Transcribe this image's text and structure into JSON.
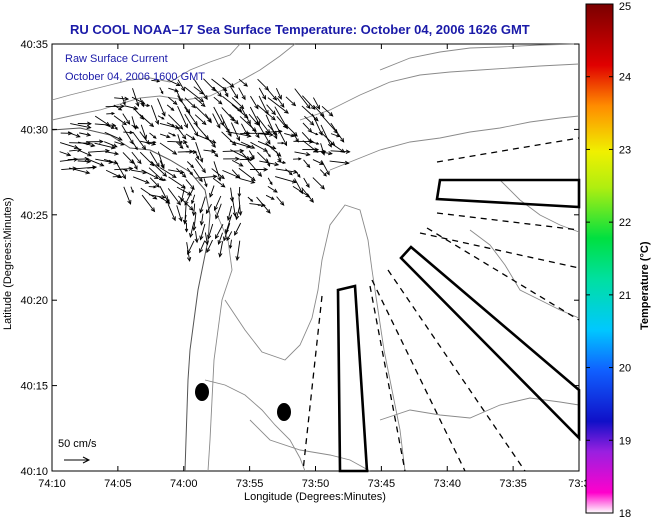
{
  "title": "RU COOL  NOAA–17  Sea Surface Temperature:  October 04, 2006 1626 GMT",
  "inset": {
    "line1": "Raw Surface Current",
    "line2": "October 04, 2006 1600 GMT"
  },
  "axes": {
    "xlabel": "Longitude (Degrees:Minutes)",
    "ylabel": "Latitude (Degrees:Minutes)",
    "x_ticks": [
      "74:10",
      "74:05",
      "74:00",
      "73:55",
      "73:50",
      "73:45",
      "73:40",
      "73:35",
      "73:3"
    ],
    "y_ticks": [
      "40:35",
      "40:30",
      "40:25",
      "40:20",
      "40:15",
      "40:10"
    ]
  },
  "scale": {
    "label": "50 cm/s"
  },
  "colorbar": {
    "label": "Temperature (°C)",
    "ticks": [
      "25",
      "24",
      "23",
      "22",
      "21",
      "20",
      "19",
      "18"
    ],
    "min": 18,
    "max": 25,
    "colors": [
      "#ff00cc",
      "#1010c8",
      "#00c8ff",
      "#00e040",
      "#f0f000",
      "#ff8c00",
      "#e00000",
      "#7a0000"
    ]
  },
  "map": {
    "lon_range": [
      "74:10",
      "73:30"
    ],
    "lat_range": [
      "40:10",
      "40:35"
    ],
    "sampling_sites": 2,
    "survey_zones": 3
  }
}
